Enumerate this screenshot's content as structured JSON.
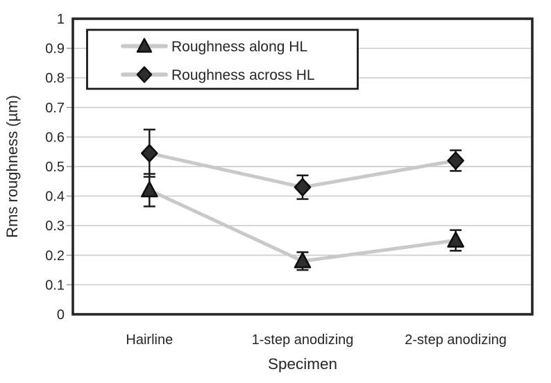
{
  "chart_data": {
    "type": "line",
    "title": "",
    "xlabel": "Specimen",
    "ylabel": "Rms roughness (µm)",
    "categories": [
      "Hairline",
      "1-step anodizing",
      "2-step anodizing"
    ],
    "series": [
      {
        "name": "Roughness along HL",
        "marker": "triangle",
        "values": [
          0.42,
          0.18,
          0.25
        ],
        "errors": [
          0.055,
          0.03,
          0.035
        ]
      },
      {
        "name": "Roughness across HL",
        "marker": "diamond",
        "values": [
          0.545,
          0.43,
          0.52
        ],
        "errors": [
          0.08,
          0.04,
          0.035
        ]
      }
    ],
    "ylim": [
      0,
      1
    ],
    "ytick_labels": [
      "0",
      "0.1",
      "0.2",
      "0.3",
      "0.4",
      "0.5",
      "0.6",
      "0.7",
      "0.8",
      "0.9",
      "1"
    ],
    "grid": true,
    "legend_position": "inside-top-left",
    "colors": {
      "background": "#ffffff",
      "series_line": "#c9c9c9",
      "grid": "#c6c6c6",
      "tick": "#9e9e9e",
      "marker_fill": "#2d2d2d",
      "marker_stroke": "#0d0d0d",
      "error_bar": "#1a1a1a",
      "border": "#262626",
      "legend_border": "#1a1a1a",
      "text": "#262626"
    }
  }
}
